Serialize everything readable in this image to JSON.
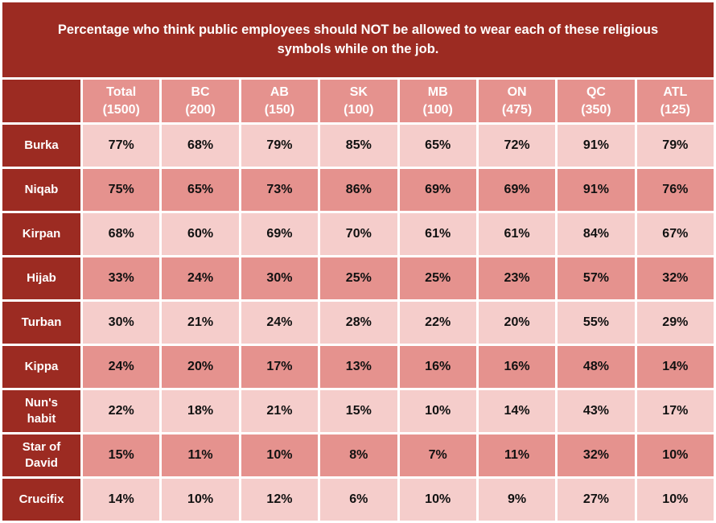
{
  "banner": {
    "title": "Percentage who think public employees should NOT be allowed to wear each of these religious symbols while on the job."
  },
  "table": {
    "header": [
      {
        "region": "Total",
        "n": "(1500)"
      },
      {
        "region": "BC",
        "n": "(200)"
      },
      {
        "region": "AB",
        "n": "(150)"
      },
      {
        "region": "SK",
        "n": "(100)"
      },
      {
        "region": "MB",
        "n": "(100)"
      },
      {
        "region": "ON",
        "n": "(475)"
      },
      {
        "region": "QC",
        "n": "(350)"
      },
      {
        "region": "ATL",
        "n": "(125)"
      }
    ],
    "rows": [
      {
        "label": "Burka",
        "values": [
          "77%",
          "68%",
          "79%",
          "85%",
          "65%",
          "72%",
          "91%",
          "79%"
        ]
      },
      {
        "label": "Niqab",
        "values": [
          "75%",
          "65%",
          "73%",
          "86%",
          "69%",
          "69%",
          "91%",
          "76%"
        ]
      },
      {
        "label": "Kirpan",
        "values": [
          "68%",
          "60%",
          "69%",
          "70%",
          "61%",
          "61%",
          "84%",
          "67%"
        ]
      },
      {
        "label": "Hijab",
        "values": [
          "33%",
          "24%",
          "30%",
          "25%",
          "25%",
          "23%",
          "57%",
          "32%"
        ]
      },
      {
        "label": "Turban",
        "values": [
          "30%",
          "21%",
          "24%",
          "28%",
          "22%",
          "20%",
          "55%",
          "29%"
        ]
      },
      {
        "label": "Kippa",
        "values": [
          "24%",
          "20%",
          "17%",
          "13%",
          "16%",
          "16%",
          "48%",
          "14%"
        ]
      },
      {
        "label": "Nun's habit",
        "values": [
          "22%",
          "18%",
          "21%",
          "15%",
          "10%",
          "14%",
          "43%",
          "17%"
        ]
      },
      {
        "label": "Star of David",
        "values": [
          "15%",
          "11%",
          "10%",
          "8%",
          "7%",
          "11%",
          "32%",
          "10%"
        ]
      },
      {
        "label": "Crucifix",
        "values": [
          "14%",
          "10%",
          "12%",
          "6%",
          "10%",
          "9%",
          "27%",
          "10%"
        ]
      }
    ]
  },
  "colors": {
    "dark_red": "#9C2B22",
    "salmon": "#E5928E",
    "light_pink": "#F5CDCB",
    "gridline": "#FFFFFF",
    "value_text": "#111111",
    "header_text": "#FFFFFF"
  },
  "chart_data": {
    "type": "table",
    "title": "Percentage who think public employees should NOT be allowed to wear each of these religious symbols while on the job.",
    "columns": [
      "Total (1500)",
      "BC (200)",
      "AB (150)",
      "SK (100)",
      "MB (100)",
      "ON (475)",
      "QC (350)",
      "ATL (125)"
    ],
    "row_labels": [
      "Burka",
      "Niqab",
      "Kirpan",
      "Hijab",
      "Turban",
      "Kippa",
      "Nun's habit",
      "Star of David",
      "Crucifix"
    ],
    "values_percent": [
      [
        77,
        68,
        79,
        85,
        65,
        72,
        91,
        79
      ],
      [
        75,
        65,
        73,
        86,
        69,
        69,
        91,
        76
      ],
      [
        68,
        60,
        69,
        70,
        61,
        61,
        84,
        67
      ],
      [
        33,
        24,
        30,
        25,
        25,
        23,
        57,
        32
      ],
      [
        30,
        21,
        24,
        28,
        22,
        20,
        55,
        29
      ],
      [
        24,
        20,
        17,
        13,
        16,
        16,
        48,
        14
      ],
      [
        22,
        18,
        21,
        15,
        10,
        14,
        43,
        17
      ],
      [
        15,
        11,
        10,
        8,
        7,
        11,
        32,
        10
      ],
      [
        14,
        10,
        12,
        6,
        10,
        9,
        27,
        10
      ]
    ],
    "layout": {
      "banding": "alternating light-pink / salmon data rows",
      "row_header_color": "dark red",
      "gridlines": "white 3px"
    }
  }
}
